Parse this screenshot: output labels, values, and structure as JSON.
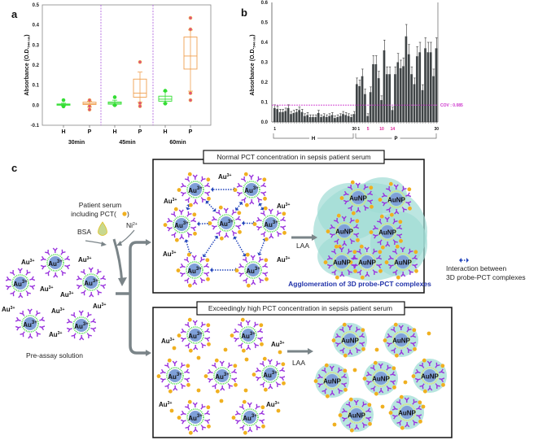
{
  "panel_labels": {
    "a": "a",
    "b": "b",
    "c": "c"
  },
  "chart_data": [
    {
      "type": "box",
      "panel": "a",
      "ylabel": "Absorbance (O.D.",
      "ylabel_sub": "544 nm",
      "ylim": [
        -0.1,
        0.5
      ],
      "yticks": [
        "-0.1",
        "0.0",
        "0.1",
        "0.2",
        "0.3",
        "0.4",
        "0.5"
      ],
      "groups": [
        "30min",
        "45min",
        "60min"
      ],
      "categories": [
        "H",
        "P",
        "H",
        "P",
        "H",
        "P"
      ],
      "colors": {
        "H": "#33dd33",
        "P": "#f0a050",
        "outlier": "#e0507a"
      },
      "boxes": [
        {
          "group": "30min",
          "cat": "H",
          "min": -0.003,
          "q1": 0.0,
          "median": 0.003,
          "q3": 0.006,
          "max": 0.01,
          "outliers": [
            0.025,
            -0.006
          ]
        },
        {
          "group": "30min",
          "cat": "P",
          "min": -0.01,
          "q1": 0.003,
          "median": 0.008,
          "q3": 0.015,
          "max": 0.02,
          "outliers": [
            0.025,
            -0.005,
            -0.022
          ]
        },
        {
          "group": "45min",
          "cat": "H",
          "min": 0.0,
          "q1": 0.005,
          "median": 0.01,
          "q3": 0.016,
          "max": 0.025,
          "outliers": [
            0.04,
            0.0
          ]
        },
        {
          "group": "45min",
          "cat": "P",
          "min": 0.015,
          "q1": 0.04,
          "median": 0.06,
          "q3": 0.13,
          "max": 0.165,
          "outliers": [
            0.215,
            0.01,
            -0.005
          ]
        },
        {
          "group": "60min",
          "cat": "H",
          "min": 0.01,
          "q1": 0.02,
          "median": 0.03,
          "q3": 0.045,
          "max": 0.07,
          "outliers": [
            0.072,
            0.008
          ]
        },
        {
          "group": "60min",
          "cat": "P",
          "min": 0.07,
          "q1": 0.18,
          "median": 0.245,
          "q3": 0.34,
          "max": 0.375,
          "outliers": [
            0.435,
            0.378,
            0.06,
            0.025
          ]
        }
      ]
    },
    {
      "type": "bar",
      "panel": "b",
      "ylabel": "Absorbance (O.D.",
      "ylabel_sub": "544 nm",
      "ylim": [
        0.0,
        0.6
      ],
      "yticks": [
        "0.0",
        "0.1",
        "0.2",
        "0.3",
        "0.4",
        "0.5",
        "0.6"
      ],
      "threshold": {
        "label": "COV : 0.085",
        "value": 0.085,
        "color": "#cc33cc"
      },
      "xtick_labels": {
        "H_first": "1",
        "H_last": "30",
        "P_first": "1",
        "P_5": "5",
        "P_10": "10",
        "P_14": "14",
        "P_last": "30"
      },
      "highlight_color": "#dd2299",
      "group_labels": {
        "H": "H",
        "P": "P"
      },
      "series": [
        {
          "group": "H",
          "values": [
            0.07,
            0.065,
            0.05,
            0.05,
            0.055,
            0.07,
            0.04,
            0.045,
            0.05,
            0.06,
            0.05,
            0.03,
            0.035,
            0.025,
            0.025,
            0.025,
            0.045,
            0.025,
            0.03,
            0.025,
            0.03,
            0.035,
            0.02,
            0.025,
            0.03,
            0.04,
            0.035,
            0.03,
            0.025,
            0.04
          ]
        },
        {
          "group": "P",
          "values": [
            0.19,
            0.18,
            0.23,
            0.14,
            0.03,
            0.15,
            0.29,
            0.29,
            0.22,
            0.11,
            0.36,
            0.24,
            0.24,
            0.06,
            0.24,
            0.3,
            0.27,
            0.28,
            0.43,
            0.34,
            0.24,
            0.19,
            0.33,
            0.35,
            0.16,
            0.37,
            0.35,
            0.35,
            0.23,
            0.37
          ]
        }
      ]
    }
  ],
  "diagram": {
    "serum_label_1": "Patient serum",
    "serum_label_2": "including PCT(",
    "serum_label_close": ")",
    "bsa": "BSA",
    "ni": {
      "base": "Ni",
      "sup": "2+"
    },
    "au_ion": {
      "base": "Au",
      "sup": "3+"
    },
    "aunp": "AuNP",
    "pre_assay": "Pre-assay solution",
    "normal_title": "Normal PCT concentration in sepsis patient serum",
    "high_title": "Exceedingly high PCT concentration in sepsis patient serum",
    "laa": "LAA",
    "agglomeration": "Agglomeration of 3D probe-PCT complexes",
    "legend_line1": "Interaction between",
    "legend_line2": "3D probe-PCT complexes",
    "colors": {
      "antibody": "#9933dd",
      "pct": "#f0b020",
      "core": "#7fa0d8",
      "shell": "#55dd55",
      "cloud": "#9fdcd4",
      "interaction": "#2244bb",
      "agglomeration_text": "#2233aa"
    }
  }
}
